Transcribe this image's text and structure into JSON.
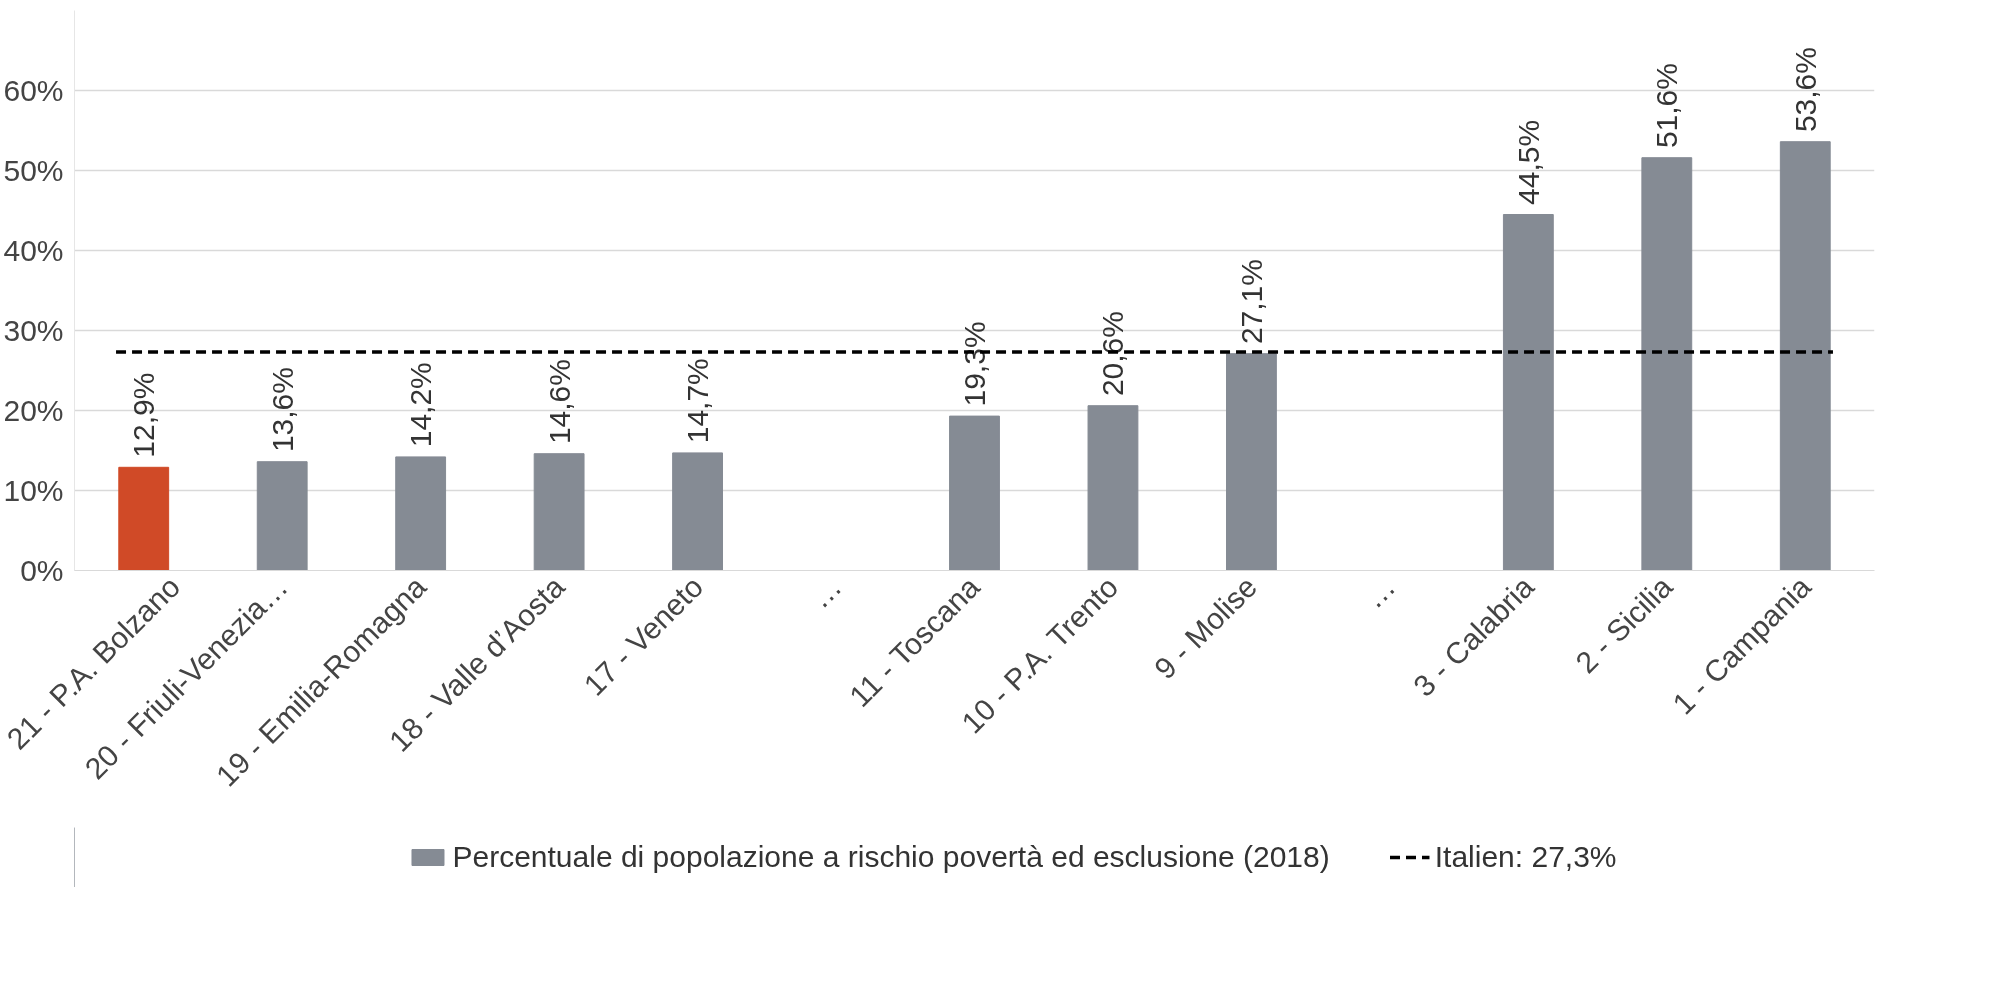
{
  "chart_data": {
    "type": "bar",
    "categories": [
      "21 - P.A. Bolzano",
      "20 - Friuli-Venezia…",
      "19 - Emilia-Romagna",
      "18 - Valle d’Aosta",
      "17 - Veneto",
      "…",
      "11 - Toscana",
      "10 - P.A. Trento",
      "9 - Molise",
      "…",
      "3 - Calabria",
      "2 - Sicilia",
      "1 - Campania"
    ],
    "series": [
      {
        "name": "Percentuale di popolazione a rischio povertà ed esclusione (2018)",
        "color": "#858b94",
        "colors": [
          "#d04a27",
          "#858b94",
          "#858b94",
          "#858b94",
          "#858b94",
          "#858b94",
          "#858b94",
          "#858b94",
          "#858b94",
          "#858b94",
          "#858b94",
          "#858b94",
          "#858b94"
        ],
        "values": [
          12.9,
          13.6,
          14.2,
          14.6,
          14.7,
          null,
          19.3,
          20.6,
          27.1,
          null,
          44.5,
          51.6,
          53.6
        ],
        "value_labels": [
          "12,9%",
          "13,6%",
          "14,2%",
          "14,6%",
          "14,7%",
          null,
          "19,3%",
          "20,6%",
          "27,1%",
          null,
          "44,5%",
          "51,6%",
          "53,6%"
        ]
      }
    ],
    "ylim": [
      0,
      70
    ],
    "yticks": [
      {
        "value": 0,
        "label": "0%"
      },
      {
        "value": 10,
        "label": "10%"
      },
      {
        "value": 20,
        "label": "20%"
      },
      {
        "value": 30,
        "label": "30%"
      },
      {
        "value": 40,
        "label": "40%"
      },
      {
        "value": 50,
        "label": "50%"
      },
      {
        "value": 60,
        "label": "60%"
      }
    ],
    "grid": "y",
    "legend": "bottom",
    "ref_lines": [
      {
        "axis": "y",
        "value": 27.3,
        "label": "Italien: 27,3%",
        "color": "#000000",
        "line_style": "dashed"
      }
    ]
  }
}
